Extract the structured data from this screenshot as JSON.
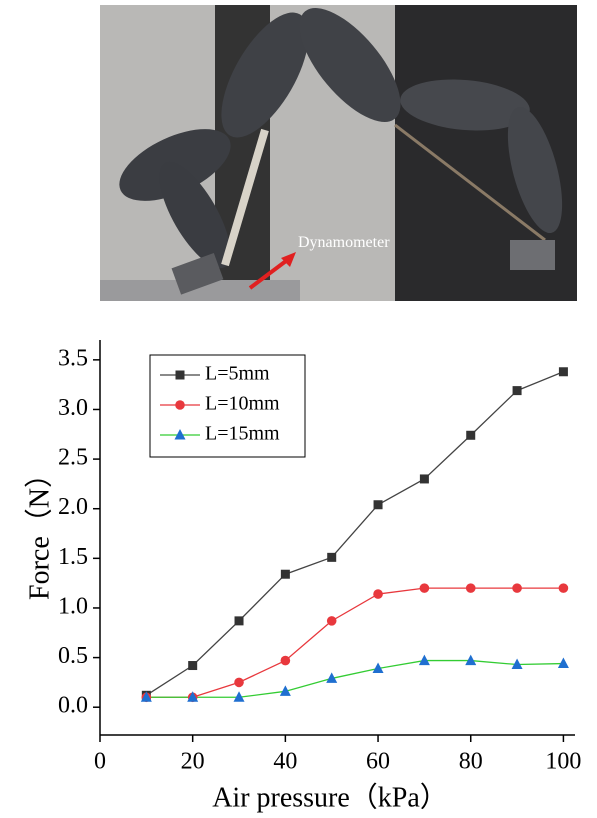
{
  "photo": {
    "annotation": "Dynamometer"
  },
  "chart_data": {
    "type": "line",
    "x_label": "Air pressure（kPa）",
    "y_label": "Force（N）",
    "x": [
      10,
      20,
      30,
      40,
      50,
      60,
      70,
      80,
      90,
      100
    ],
    "series": [
      {
        "name": "L=5mm",
        "color": "#444444",
        "marker": "square",
        "marker_color": "#333333",
        "values": [
          0.12,
          0.42,
          0.87,
          1.34,
          1.51,
          2.04,
          2.3,
          2.74,
          3.19,
          3.38
        ]
      },
      {
        "name": "L=10mm",
        "color": "#e8383d",
        "marker": "circle",
        "marker_color": "#e8383d",
        "values": [
          0.1,
          0.1,
          0.25,
          0.47,
          0.87,
          1.14,
          1.2,
          1.2,
          1.2,
          1.2
        ]
      },
      {
        "name": "L=15mm",
        "color": "#33cc33",
        "marker": "triangle",
        "marker_color": "#1f6fd0",
        "values": [
          0.1,
          0.1,
          0.1,
          0.16,
          0.29,
          0.39,
          0.47,
          0.47,
          0.43,
          0.44
        ]
      }
    ],
    "xlim": [
      0,
      102.5
    ],
    "ylim": [
      -0.28,
      3.7
    ],
    "xticks": [
      0,
      20,
      40,
      60,
      80,
      100
    ],
    "yticks": [
      {
        "value": 0,
        "label": "0.0"
      },
      0.5,
      {
        "value": 1,
        "label": "1.0"
      },
      1.5,
      {
        "value": 2,
        "label": "2.0"
      },
      2.5,
      {
        "value": 3,
        "label": "3.0"
      },
      3.5
    ],
    "legend": "upper left"
  }
}
